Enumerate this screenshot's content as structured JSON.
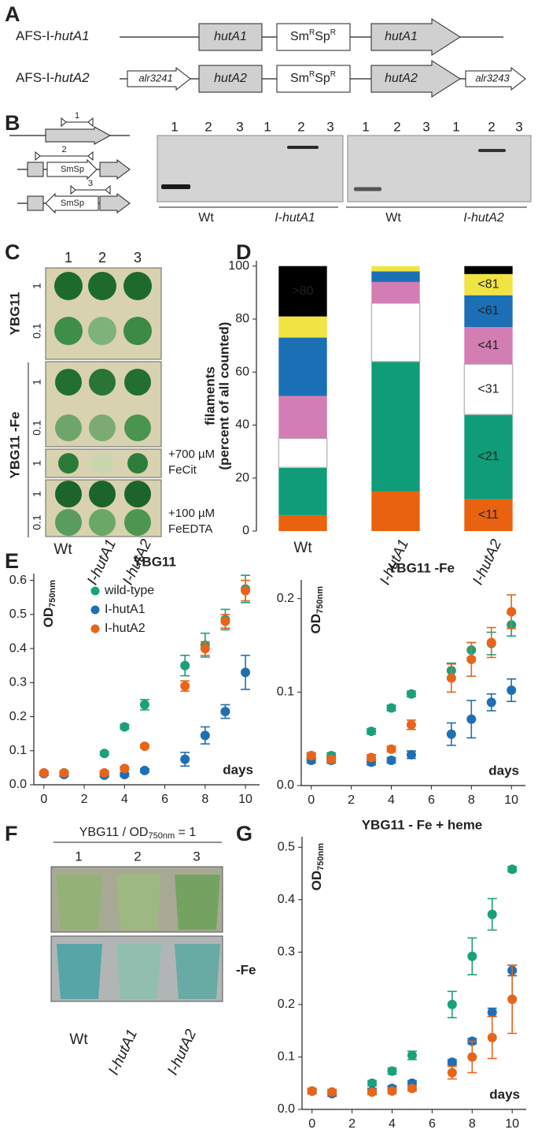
{
  "panel_labels": [
    "A",
    "B",
    "C",
    "D",
    "E",
    "F",
    "G"
  ],
  "panel_a": {
    "constructs": [
      {
        "prefix": "AFS-I-",
        "gene": "hutA1",
        "gene_boxes": [
          "hutA1",
          "hutA1"
        ],
        "cassette": [
          "Sm",
          "R",
          "Sp",
          "R"
        ]
      },
      {
        "prefix": "AFS-I-",
        "gene": "hutA2",
        "left_flank": "alr3241",
        "gene_boxes": [
          "hutA2",
          "hutA2"
        ],
        "cassette": [
          "Sm",
          "R",
          "Sp",
          "R"
        ],
        "right_flank": "alr3243"
      }
    ]
  },
  "panel_b": {
    "primer_labels": [
      "1",
      "2",
      "3"
    ],
    "cassette_labels": [
      "SmSp",
      "SmSp"
    ],
    "gels": [
      {
        "lanes": [
          "1",
          "2",
          "3",
          "1",
          "2",
          "3"
        ],
        "groups": [
          "Wt",
          "I-hutA1"
        ]
      },
      {
        "lanes": [
          "1",
          "2",
          "3",
          "1",
          "2",
          "3"
        ],
        "groups": [
          "Wt",
          "I-hutA2"
        ]
      }
    ]
  },
  "panel_c": {
    "columns": [
      "1",
      "2",
      "3"
    ],
    "media": [
      "YBG11",
      "YBG11 -Fe"
    ],
    "dilutions": [
      "1",
      "0.1",
      "1",
      "0.1",
      "1",
      "1",
      "0.1"
    ],
    "supplements": [
      [
        "+700 µM",
        "FeCit"
      ],
      [
        "+100 µM",
        "FeEDTA"
      ]
    ],
    "strains": [
      "Wt",
      "I-hutA1",
      "I-hutA2"
    ]
  },
  "panel_f": {
    "header": {
      "main": "YBG11 / OD",
      "sub": "750nm",
      "tail": " = 1"
    },
    "columns": [
      "1",
      "2",
      "3"
    ],
    "row_label": "-Fe",
    "strains": [
      "Wt",
      "I-hutA1",
      "I-hutA2"
    ]
  },
  "chart_data": [
    {
      "type": "bar",
      "stacked": true,
      "ylabel": [
        "filaments",
        "(percent of all counted)"
      ],
      "categories": [
        "Wt",
        "I-hutA1",
        "I-hutA2"
      ],
      "series": [
        {
          "name": "<11",
          "color": "#e8620f",
          "values": [
            6,
            15,
            12
          ]
        },
        {
          "name": "<21",
          "color": "#0f9c78",
          "values": [
            18,
            49,
            32
          ]
        },
        {
          "name": "<31",
          "color": "#ffffff",
          "values": [
            11,
            22,
            19
          ]
        },
        {
          "name": "<41",
          "color": "#d27db3",
          "values": [
            16,
            8,
            14
          ]
        },
        {
          "name": "<61",
          "color": "#1b70b5",
          "values": [
            22,
            4,
            12
          ]
        },
        {
          "name": "<81",
          "color": "#f0e442",
          "values": [
            8,
            2,
            8
          ]
        },
        {
          "name": ">80",
          "color": "#000000",
          "values": [
            19,
            0,
            3
          ]
        }
      ],
      "ylim": [
        0,
        102
      ],
      "yticks": [
        0,
        20,
        40,
        60,
        80,
        100
      ]
    },
    {
      "type": "scatter",
      "title": "YBG11",
      "ylabel": {
        "main": "OD",
        "sub": "750nm"
      },
      "xlabel": "days",
      "x": [
        0,
        1,
        3,
        4,
        5,
        7,
        8,
        9,
        10
      ],
      "series": [
        {
          "name": "wild-type",
          "color": "#1aa07a",
          "values": [
            0.033,
            0.035,
            0.092,
            0.17,
            0.235,
            0.35,
            0.41,
            0.485,
            0.575
          ],
          "errors": [
            0.005,
            0.005,
            0.005,
            0.007,
            0.015,
            0.03,
            0.035,
            0.03,
            0.04
          ]
        },
        {
          "name": "I-hutA1",
          "color": "#1f6fb4",
          "values": [
            0.033,
            0.03,
            0.028,
            0.03,
            0.042,
            0.075,
            0.145,
            0.215,
            0.33
          ],
          "errors": [
            0.005,
            0.005,
            0.005,
            0.005,
            0.005,
            0.02,
            0.025,
            0.02,
            0.05
          ]
        },
        {
          "name": "I-hutA2",
          "color": "#e8641b",
          "values": [
            0.035,
            0.035,
            0.035,
            0.048,
            0.113,
            0.29,
            0.4,
            0.48,
            0.57
          ],
          "errors": [
            0.005,
            0.005,
            0.005,
            0.005,
            0.005,
            0.015,
            0.02,
            0.02,
            0.03
          ]
        }
      ],
      "xlim": [
        -0.5,
        10.7
      ],
      "xticks": [
        0,
        2,
        4,
        6,
        8,
        10
      ],
      "ylim": [
        0,
        0.62
      ],
      "yticks": [
        {
          "value": 0,
          "label": "0.0"
        },
        0.1,
        0.2,
        0.3,
        0.4,
        0.5,
        0.6
      ],
      "legend": "upper left"
    },
    {
      "type": "scatter",
      "title": "YBG11 -Fe",
      "ylabel": {
        "main": "OD",
        "sub": "750nm"
      },
      "xlabel": "days",
      "x": [
        0,
        1,
        3,
        4,
        5,
        7,
        8,
        9,
        10
      ],
      "series": [
        {
          "name": "wild-type",
          "color": "#1aa07a",
          "values": [
            0.032,
            0.032,
            0.058,
            0.083,
            0.098,
            0.123,
            0.145,
            0.152,
            0.172
          ],
          "errors": [
            0.003,
            0.003,
            0.003,
            0.003,
            0.003,
            0.008,
            0.008,
            0.012,
            0.012
          ]
        },
        {
          "name": "I-hutA1",
          "color": "#1f6fb4",
          "values": [
            0.027,
            0.027,
            0.025,
            0.027,
            0.033,
            0.055,
            0.071,
            0.089,
            0.102
          ],
          "errors": [
            0.003,
            0.003,
            0.003,
            0.003,
            0.004,
            0.012,
            0.02,
            0.009,
            0.012
          ]
        },
        {
          "name": "I-hutA2",
          "color": "#e8641b",
          "values": [
            0.032,
            0.028,
            0.03,
            0.039,
            0.065,
            0.115,
            0.135,
            0.153,
            0.186
          ],
          "errors": [
            0.003,
            0.003,
            0.003,
            0.003,
            0.005,
            0.015,
            0.018,
            0.016,
            0.018
          ]
        }
      ],
      "xlim": [
        -0.5,
        10.7
      ],
      "xticks": [
        0,
        2,
        4,
        6,
        8,
        10
      ],
      "ylim": [
        0,
        0.22
      ],
      "yticks": [
        {
          "value": 0,
          "label": "0.0"
        },
        0.1,
        0.2
      ]
    },
    {
      "type": "scatter",
      "title": "YBG11 - Fe + heme",
      "ylabel": {
        "main": "OD",
        "sub": "750nm"
      },
      "xlabel": "days",
      "x": [
        0,
        1,
        3,
        4,
        5,
        7,
        8,
        9,
        10
      ],
      "series": [
        {
          "name": "wild-type",
          "color": "#1aa07a",
          "values": [
            0.035,
            0.033,
            0.05,
            0.073,
            0.103,
            0.2,
            0.292,
            0.372,
            0.458
          ],
          "errors": [
            0.005,
            0.005,
            0.005,
            0.006,
            0.008,
            0.025,
            0.035,
            0.03,
            0.005
          ]
        },
        {
          "name": "I-hutA1",
          "color": "#1f6fb4",
          "values": [
            0.035,
            0.03,
            0.035,
            0.04,
            0.05,
            0.09,
            0.13,
            0.185,
            0.265
          ],
          "errors": [
            0.005,
            0.005,
            0.005,
            0.005,
            0.005,
            0.005,
            0.005,
            0.008,
            0.01
          ]
        },
        {
          "name": "I-hutA2",
          "color": "#e8641b",
          "values": [
            0.035,
            0.033,
            0.033,
            0.035,
            0.04,
            0.07,
            0.1,
            0.137,
            0.21
          ],
          "errors": [
            0.005,
            0.005,
            0.005,
            0.005,
            0.005,
            0.012,
            0.03,
            0.04,
            0.065
          ]
        }
      ],
      "xlim": [
        -0.5,
        10.7
      ],
      "xticks": [
        0,
        2,
        4,
        6,
        8,
        10
      ],
      "ylim": [
        0,
        0.52
      ],
      "yticks": [
        {
          "value": 0,
          "label": "0.0"
        },
        0.1,
        0.2,
        0.3,
        0.4,
        0.5
      ]
    }
  ]
}
